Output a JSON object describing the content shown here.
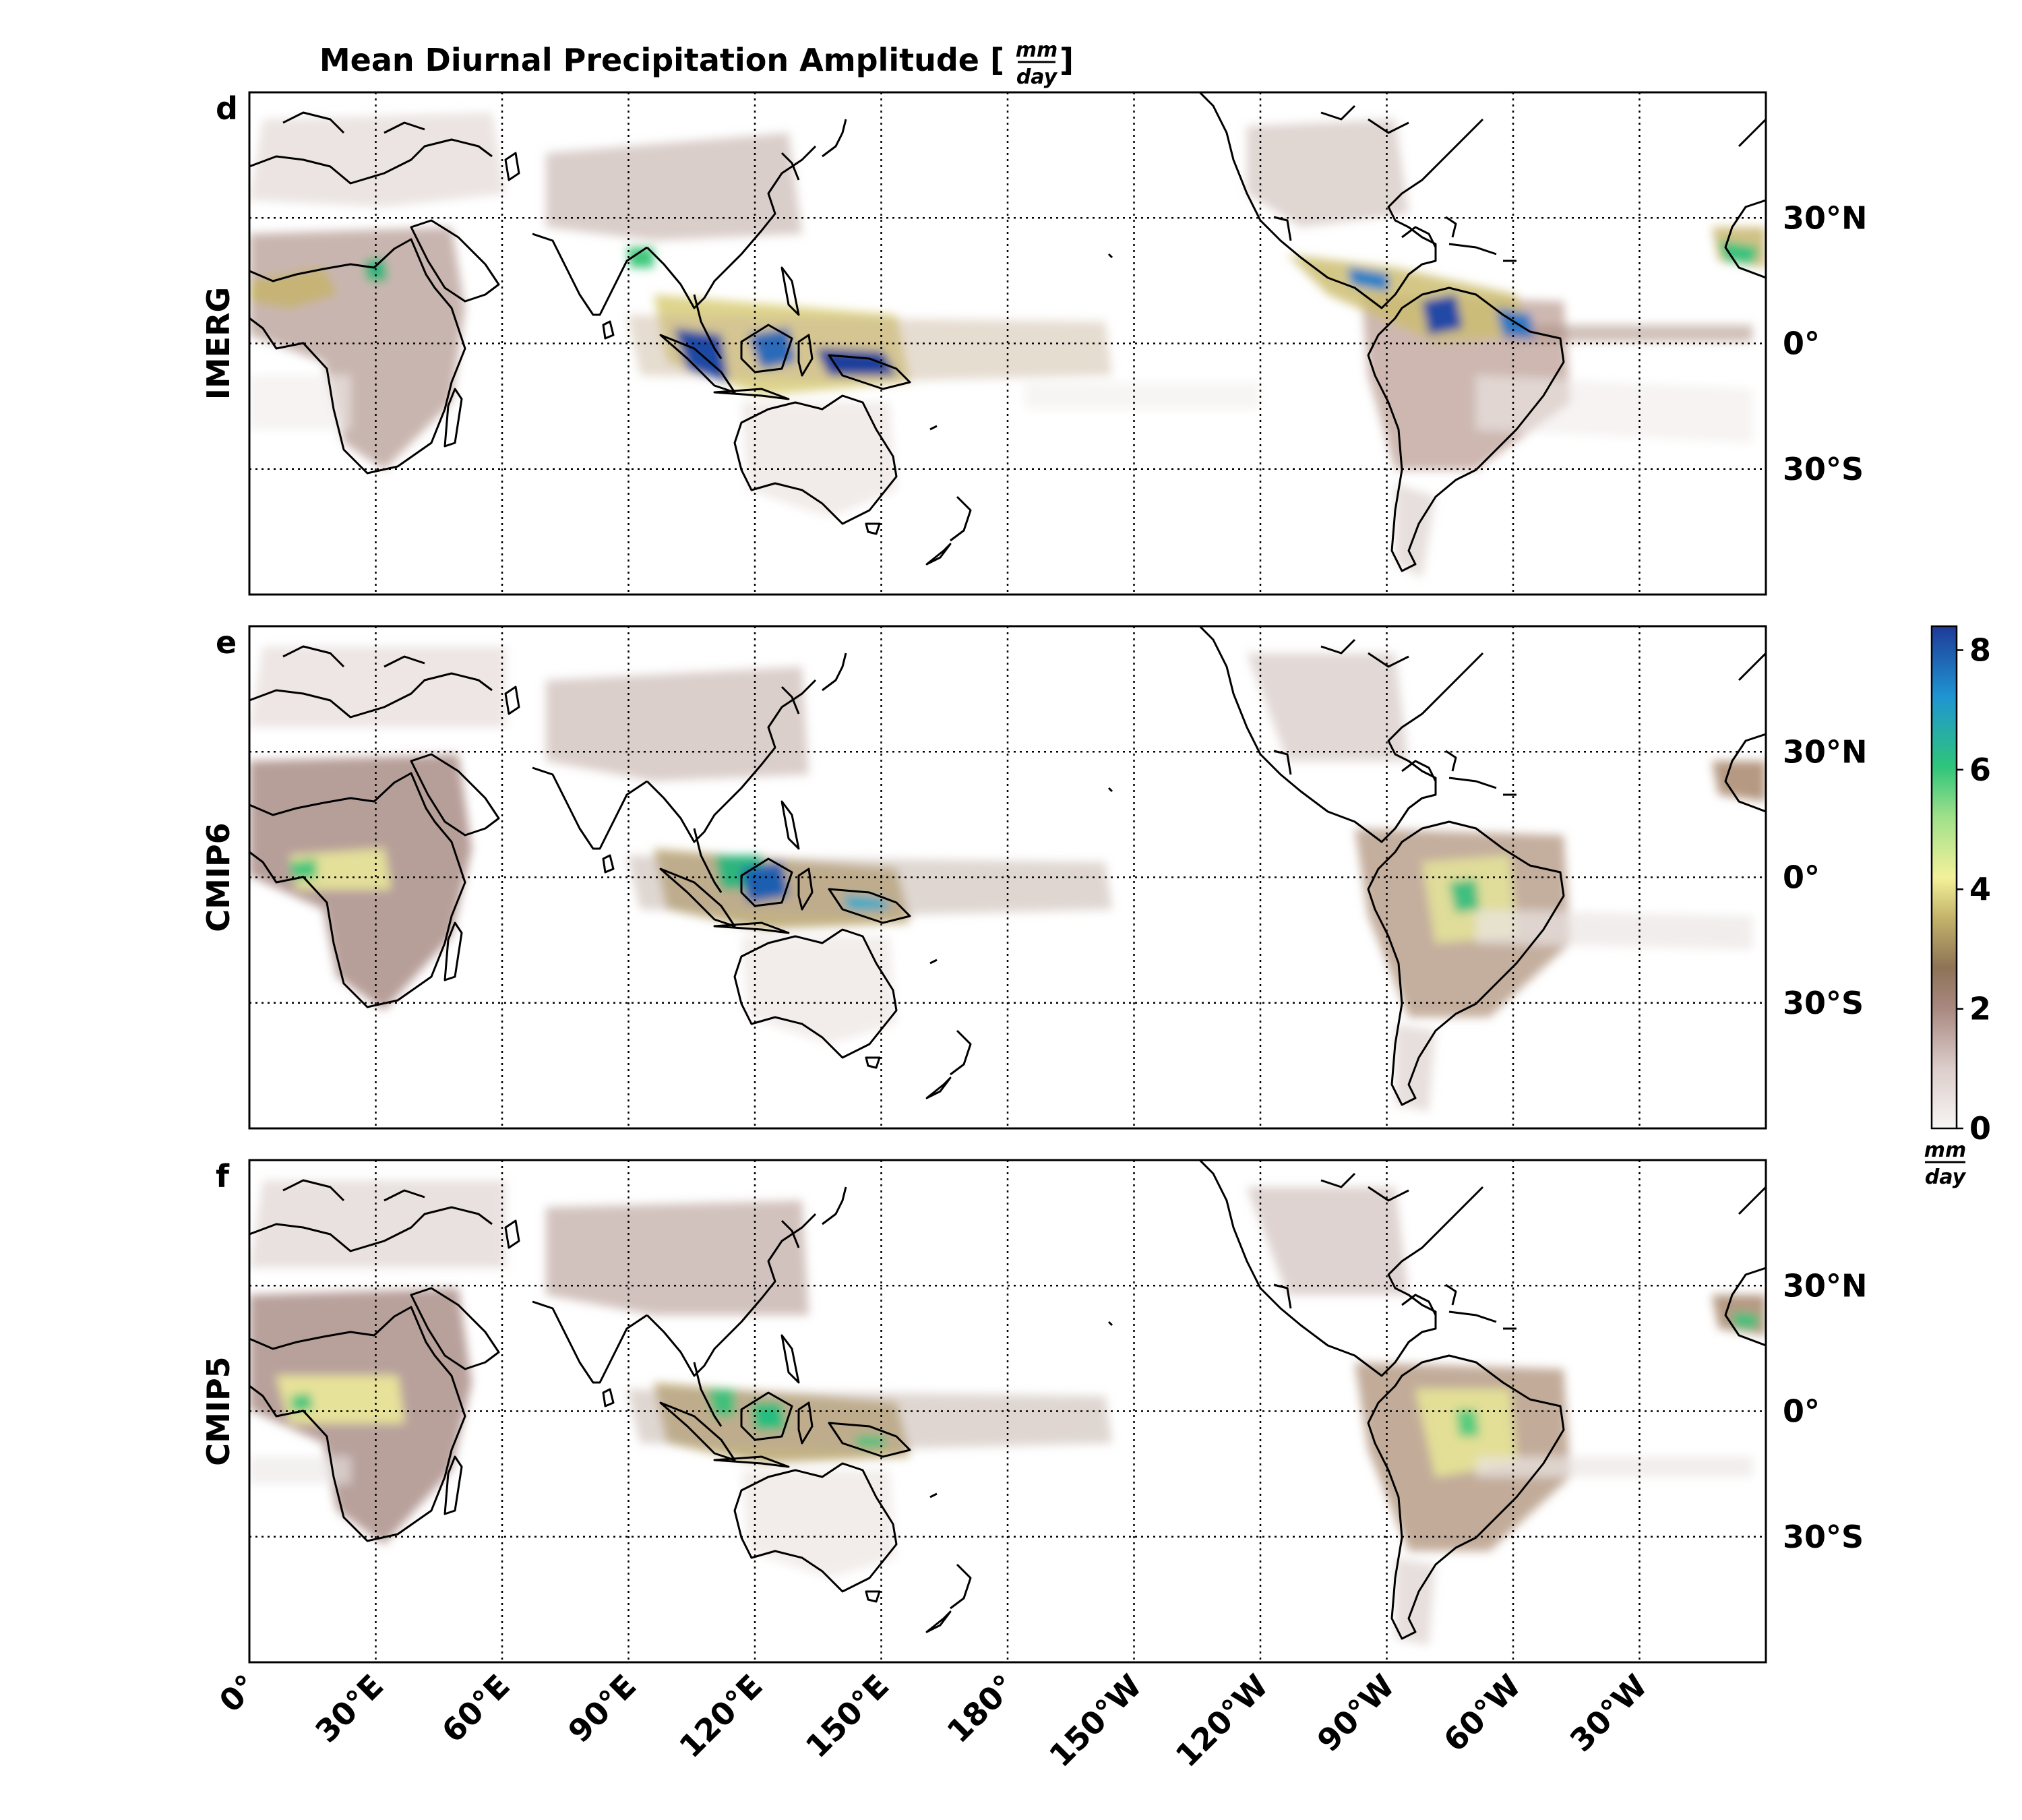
{
  "title": {
    "prefix": "Mean Diurnal Precipitation Amplitude [",
    "frac_num": "mm",
    "frac_den": "day",
    "suffix": "]"
  },
  "panels": [
    {
      "letter": "d",
      "label": "IMERG"
    },
    {
      "letter": "e",
      "label": "CMIP6"
    },
    {
      "letter": "f",
      "label": "CMIP5"
    }
  ],
  "x_ticks": [
    "0°",
    "30°E",
    "60°E",
    "90°E",
    "120°E",
    "150°E",
    "180°",
    "150°W",
    "120°W",
    "90°W",
    "60°W",
    "30°W"
  ],
  "y_ticks": [
    "30°N",
    "0°",
    "30°S"
  ],
  "colorbar": {
    "ticks": [
      "0",
      "2",
      "4",
      "6",
      "8"
    ],
    "unit_num": "mm",
    "unit_den": "day",
    "range": [
      0,
      8.4
    ],
    "colors": [
      "#f7f5f4",
      "#d9c9c6",
      "#a07f77",
      "#8c7050",
      "#c9b96c",
      "#f2f08f",
      "#7fd98a",
      "#22c07a",
      "#1a8fd0",
      "#1f3c9a"
    ]
  },
  "map_extent": {
    "lon": [
      0,
      360
    ],
    "lat": [
      -60,
      60
    ]
  }
}
